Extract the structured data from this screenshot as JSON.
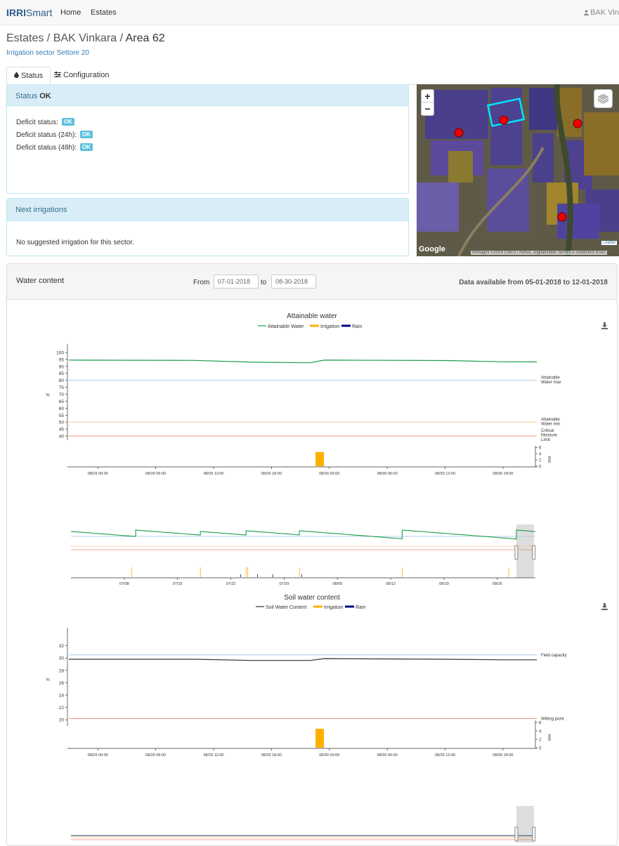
{
  "navbar": {
    "brand_a": "IRRI",
    "brand_b": "Smart",
    "links": [
      "Home",
      "Estates"
    ],
    "user": "BAK Vin"
  },
  "breadcrumb": {
    "parts": [
      "Estates",
      "BAK Vinkara"
    ],
    "current": "Area 62",
    "sep": " / "
  },
  "subtitle": "Irrigation sector Settore 20",
  "tabs": [
    {
      "label": "Status",
      "icon": "tint-icon",
      "active": true
    },
    {
      "label": "Configuration",
      "icon": "sliders-icon",
      "active": false
    }
  ],
  "status_panel": {
    "title": "Status",
    "title_value": "OK",
    "rows": [
      {
        "label": "Deficit status:",
        "badge": "OK"
      },
      {
        "label": "Deficit status (24h):",
        "badge": "OK"
      },
      {
        "label": "Deficit status (48h):",
        "badge": "OK"
      }
    ]
  },
  "next_panel": {
    "title": "Next irrigations",
    "text": "No suggested irrigation for this sector."
  },
  "map": {
    "zoom_in": "+",
    "zoom_out": "−",
    "provider": "Google",
    "attribution": "Immagini ©2019 CNES / Airbus, DigitalGlobe    Termini e condizioni d'uso",
    "leaflet": "Leaflet"
  },
  "water_content": {
    "title": "Water content",
    "from_label": "From",
    "to_label": "to",
    "from_value": "07-01-2018",
    "to_value": "08-30-2018",
    "availability": "Data available from 05-01-2018 to 12-01-2018"
  },
  "colors": {
    "attainable": "#1b9e4b",
    "irrigation": "#ffb000",
    "rain": "#00008b",
    "max_line": "#9fc5e8",
    "min_line": "#f6c28b",
    "critical": "#f08070",
    "soil": "#333333"
  },
  "chart_data": [
    {
      "type": "line",
      "title": "Attainable water",
      "legend": [
        "Attainable Water",
        "Irrigation",
        "Rain"
      ],
      "ylabel": "%",
      "ylim": [
        37,
        102
      ],
      "yticks": [
        100,
        95,
        90,
        85,
        80,
        75,
        70,
        65,
        60,
        55,
        50,
        45,
        40
      ],
      "x_ticks": [
        "08/29 00:00",
        "08/29 06:00",
        "08/29 12:00",
        "08/29 18:00",
        "08/30 00:00",
        "08/30 06:00",
        "08/30 12:00",
        "08/30 18:00"
      ],
      "x_hours": [
        0,
        6,
        12,
        18,
        24,
        30,
        36,
        42
      ],
      "x_range_hours": [
        -3,
        45.5
      ],
      "series": [
        {
          "name": "Attainable Water",
          "x": [
            -3,
            10,
            16,
            22,
            23.5,
            36,
            42,
            45.5
          ],
          "values": [
            94.5,
            94.3,
            93.0,
            92.6,
            94.5,
            94.2,
            93.3,
            93.2
          ]
        }
      ],
      "thresholds": [
        {
          "label": "Attainable Water max",
          "value": 80
        },
        {
          "label": "Attainable Water min",
          "value": 50
        },
        {
          "label": "Critical Moisture Limit",
          "value": 40
        }
      ],
      "bar_axis": {
        "label": "mm",
        "ticks": [
          0,
          2,
          4,
          6
        ],
        "ylim": [
          0,
          6.5
        ]
      },
      "irrigation": [
        {
          "x": 23,
          "value": 4.5
        }
      ],
      "rain": []
    },
    {
      "type": "line",
      "title": "Soil water content",
      "legend": [
        "Soil Water Content",
        "Irrigation",
        "Rain"
      ],
      "ylabel": "%",
      "ylim": [
        19,
        34
      ],
      "yticks": [
        32,
        30,
        28,
        26,
        24,
        22,
        20
      ],
      "x_ticks": [
        "08/29 00:00",
        "08/29 06:00",
        "08/29 12:00",
        "08/29 18:00",
        "08/30 00:00",
        "08/30 06:00",
        "08/30 12:00",
        "08/30 18:00"
      ],
      "x_hours": [
        0,
        6,
        12,
        18,
        24,
        30,
        36,
        42
      ],
      "x_range_hours": [
        -3,
        45.5
      ],
      "series": [
        {
          "name": "Soil Water Content",
          "x": [
            -3,
            10,
            16,
            22,
            23.5,
            36,
            42,
            45.5
          ],
          "values": [
            29.8,
            29.8,
            29.6,
            29.6,
            29.9,
            29.8,
            29.7,
            29.7
          ]
        }
      ],
      "thresholds": [
        {
          "label": "Field capacity",
          "value": 30.5
        },
        {
          "label": "Wilting point",
          "value": 20.2
        }
      ],
      "bar_axis": {
        "label": "mm",
        "ticks": [
          0,
          2,
          4,
          6
        ],
        "ylim": [
          0,
          6.5
        ]
      },
      "irrigation": [
        {
          "x": 23,
          "value": 4.5
        }
      ],
      "rain": []
    }
  ],
  "navigator": {
    "x_ticks": [
      "07/08",
      "07/15",
      "07/22",
      "07/29",
      "08/05",
      "08/12",
      "08/19",
      "08/26"
    ],
    "tick_days": [
      7,
      14,
      21,
      28,
      35,
      42,
      49,
      56
    ]
  }
}
